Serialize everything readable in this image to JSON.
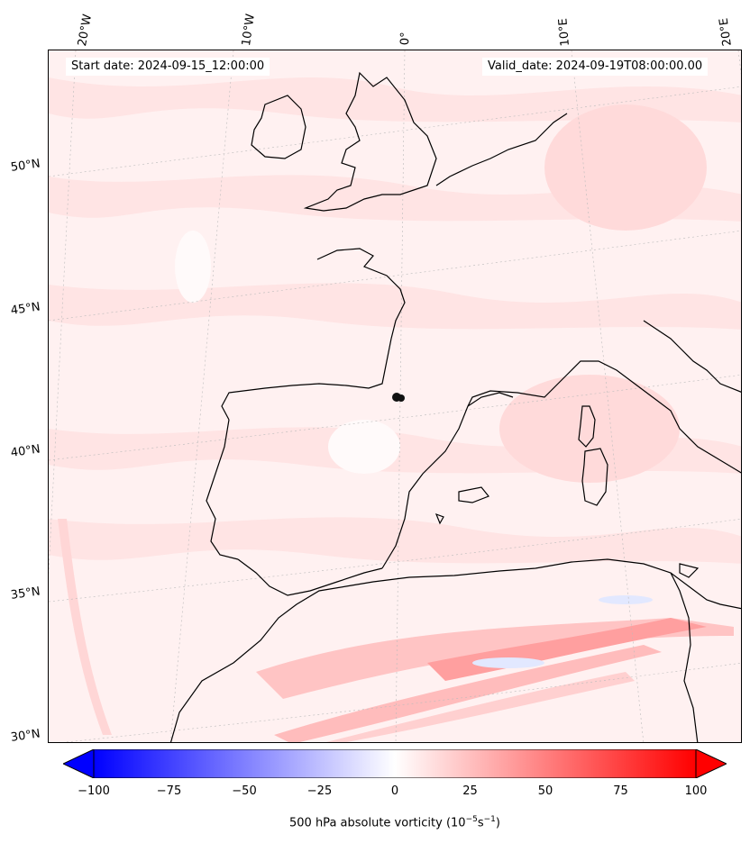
{
  "header": {
    "start_date": "Start date: 2024-09-15_12:00:00",
    "valid_date": "Valid_date: 2024-09-19T08:00:00.00"
  },
  "longitude_labels": [
    "20°W",
    "10°W",
    "0°",
    "10°E",
    "20°E"
  ],
  "latitude_labels": [
    "50°N",
    "45°N",
    "40°N",
    "35°N",
    "30°N"
  ],
  "colorbar": {
    "label_prefix": "500 hPa absolute vorticity (10",
    "label_exp1": "−5",
    "label_mid": "s",
    "label_exp2": "−1",
    "label_suffix": ")",
    "ticks": [
      "−100",
      "−75",
      "−50",
      "−25",
      "0",
      "25",
      "50",
      "75",
      "100"
    ],
    "min": -100,
    "max": 100,
    "low_color": "#0000ff",
    "mid_color": "#ffffff",
    "high_color": "#ff0000"
  },
  "map_colors": {
    "background": "#fff1f1",
    "light": "#ffe4e4",
    "medium": "#ffcfcf",
    "strong": "#ff9999",
    "pale": "#fffafa",
    "blue": "#e2e8ff",
    "coast": "#000000"
  },
  "station_marker_icon": "black-dot-icon"
}
